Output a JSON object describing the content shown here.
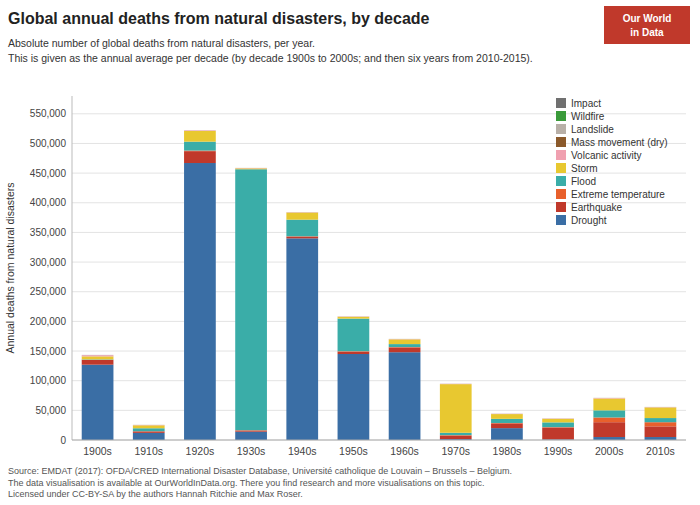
{
  "chart_data": {
    "type": "bar",
    "stacked": true,
    "title": "Global annual deaths from natural disasters, by decade",
    "subtitle": [
      "Absolute number of global deaths from natural disasters, per year.",
      "This is given as the annual average per decade (by decade 1900s to 2000s; and then six years from 2010-2015)."
    ],
    "y_label": "Annual deaths from natural disasters",
    "annotations": [
      "Source: EMDAT (2017): OFDA/CRED International Disaster Database, Université catholique de Louvain – Brussels – Belgium.",
      "The data visualisation is available at OurWorldInData.org. There you find research and more visualisations on this topic.",
      "Licensed under CC-BY-SA by the authors Hannah Ritchie and Max Roser.",
      "Our World",
      "in Data"
    ],
    "categories": [
      "1900s",
      "1910s",
      "1920s",
      "1930s",
      "1940s",
      "1950s",
      "1960s",
      "1970s",
      "1980s",
      "1990s",
      "2000s",
      "2010s"
    ],
    "series": [
      {
        "name": "Drought",
        "color": "#3a6ea5",
        "values": [
          127000,
          12000,
          467000,
          14000,
          340000,
          145000,
          148000,
          1500,
          20000,
          1000,
          5000,
          5000
        ]
      },
      {
        "name": "Earthquake",
        "color": "#c0392b",
        "values": [
          8000,
          2500,
          20000,
          2000,
          3000,
          4000,
          8000,
          6000,
          8000,
          20000,
          25000,
          18000
        ]
      },
      {
        "name": "Extreme temperature",
        "color": "#e8602c",
        "values": [
          300,
          300,
          1000,
          500,
          500,
          700,
          700,
          700,
          700,
          700,
          8000,
          7000
        ]
      },
      {
        "name": "Flood",
        "color": "#3aada8",
        "values": [
          700,
          5000,
          15000,
          440000,
          28000,
          55000,
          5000,
          4000,
          7000,
          8000,
          12000,
          7000
        ]
      },
      {
        "name": "Storm",
        "color": "#e8c830",
        "values": [
          5000,
          5000,
          18000,
          1500,
          12000,
          3000,
          8000,
          82000,
          8000,
          6000,
          20000,
          18000
        ]
      },
      {
        "name": "Volcanic activity",
        "color": "#f0a0b0",
        "values": [
          2000,
          500,
          1000,
          500,
          500,
          500,
          500,
          500,
          500,
          500,
          800,
          500
        ]
      },
      {
        "name": "Mass movement (dry)",
        "color": "#8b5a2b",
        "values": [
          0,
          0,
          0,
          0,
          0,
          0,
          0,
          0,
          0,
          0,
          0,
          0
        ]
      },
      {
        "name": "Landslide",
        "color": "#b8b0a8",
        "values": [
          500,
          300,
          300,
          300,
          300,
          300,
          300,
          300,
          300,
          300,
          300,
          300
        ]
      },
      {
        "name": "Wildfire",
        "color": "#3a9a3a",
        "values": [
          0,
          0,
          0,
          0,
          0,
          0,
          0,
          0,
          0,
          0,
          0,
          0
        ]
      },
      {
        "name": "Impact",
        "color": "#707070",
        "values": [
          0,
          0,
          0,
          0,
          0,
          0,
          0,
          0,
          0,
          0,
          0,
          0
        ]
      }
    ],
    "ylim": [
      0,
      580000
    ],
    "yticks": [
      0,
      {
        "value": 50000,
        "label": "50,000"
      },
      {
        "value": 100000,
        "label": "100,000"
      },
      {
        "value": 150000,
        "label": "150,000"
      },
      {
        "value": 200000,
        "label": "200,000"
      },
      {
        "value": 250000,
        "label": "250,000"
      },
      {
        "value": 300000,
        "label": "300,000"
      },
      {
        "value": 350000,
        "label": "350,000"
      },
      {
        "value": 400000,
        "label": "400,000"
      },
      {
        "value": 450000,
        "label": "450,000"
      },
      {
        "value": 500000,
        "label": "500,000"
      },
      {
        "value": 550000,
        "label": "550,000"
      }
    ],
    "grid": true,
    "legend": "upper right"
  }
}
